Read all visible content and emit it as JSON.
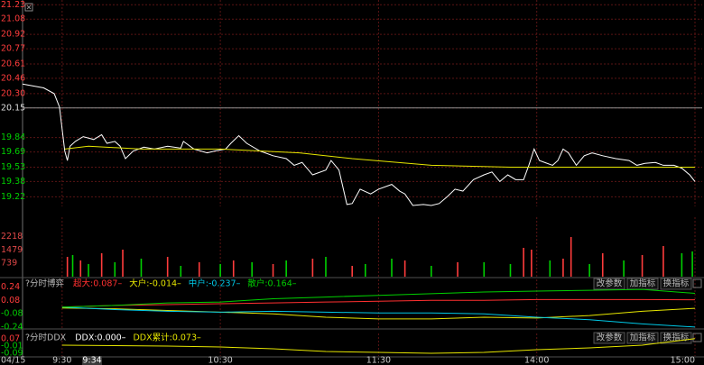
{
  "chart_data": [
    {
      "type": "line",
      "date_label": "04/15",
      "cursor_label": "9:34",
      "xlim": [
        -15,
        240
      ],
      "xticks": [
        {
          "value": 0,
          "label": "9:30"
        },
        {
          "value": 60,
          "label": "10:30"
        },
        {
          "value": 120,
          "label": "11:30"
        },
        {
          "value": 180,
          "label": "14:00"
        },
        {
          "value": 240,
          "label": "15:00"
        }
      ],
      "ylim": [
        19.12,
        21.28
      ],
      "yticks": [
        21.23,
        21.08,
        20.92,
        20.77,
        20.61,
        20.46,
        {
          "value": 20.3,
          "label": "20.30"
        },
        20.15,
        19.84,
        19.69,
        19.53,
        19.38,
        19.22
      ],
      "reference": 20.15,
      "up_color": "#ff3c3c",
      "down_color": "#00d000",
      "grid": true,
      "series": [
        {
          "color": "#ffffff",
          "x": [
            -15,
            -11,
            -7,
            -3,
            -1,
            1,
            2,
            3,
            5,
            8,
            12,
            15,
            17,
            20,
            22,
            24,
            27,
            31,
            35,
            40,
            45,
            46,
            50,
            55,
            58,
            62,
            64,
            67,
            70,
            75,
            80,
            85,
            88,
            91,
            95,
            100,
            102,
            105,
            108,
            110,
            113,
            117,
            120,
            125,
            128,
            130,
            133,
            137,
            140,
            143,
            146,
            149,
            152,
            156,
            160,
            163,
            166,
            169,
            172,
            175,
            177,
            179,
            181,
            183,
            186,
            188,
            190,
            192,
            195,
            198,
            201,
            205,
            210,
            215,
            218,
            221,
            225,
            228,
            232,
            235,
            238,
            240
          ],
          "values": [
            20.4,
            20.38,
            20.36,
            20.3,
            20.16,
            19.7,
            19.6,
            19.75,
            19.8,
            19.85,
            19.82,
            19.87,
            19.78,
            19.8,
            19.75,
            19.62,
            19.7,
            19.74,
            19.72,
            19.75,
            19.73,
            19.8,
            19.72,
            19.68,
            19.7,
            19.72,
            19.78,
            19.86,
            19.78,
            19.7,
            19.65,
            19.62,
            19.55,
            19.58,
            19.45,
            19.5,
            19.6,
            19.5,
            19.14,
            19.15,
            19.3,
            19.25,
            19.3,
            19.35,
            19.28,
            19.25,
            19.13,
            19.14,
            19.13,
            19.15,
            19.22,
            19.3,
            19.28,
            19.4,
            19.45,
            19.48,
            19.38,
            19.45,
            19.4,
            19.4,
            19.55,
            19.72,
            19.6,
            19.58,
            19.55,
            19.6,
            19.72,
            19.68,
            19.55,
            19.65,
            19.68,
            19.65,
            19.62,
            19.6,
            19.55,
            19.57,
            19.58,
            19.55,
            19.55,
            19.52,
            19.45,
            19.38
          ]
        },
        {
          "color": "#e6e600",
          "x": [
            1,
            10,
            30,
            60,
            90,
            110,
            140,
            170,
            200,
            240
          ],
          "values": [
            19.72,
            19.75,
            19.72,
            19.72,
            19.68,
            19.62,
            19.55,
            19.53,
            19.53,
            19.53
          ]
        }
      ]
    },
    {
      "type": "bar",
      "xlim": [
        -15,
        240
      ],
      "ylim": [
        0,
        3300
      ],
      "yticks": [
        2218,
        1479,
        739
      ],
      "tick_color": "#e04848",
      "series": [
        {
          "color": "#ff3c3c",
          "x": [
            2,
            7,
            15,
            23,
            40,
            52,
            65,
            80,
            95,
            110,
            130,
            150,
            175,
            178,
            190,
            193,
            205,
            220,
            228
          ],
          "values": [
            1100,
            900,
            1300,
            1500,
            1100,
            800,
            900,
            700,
            1000,
            600,
            900,
            800,
            1600,
            1500,
            1000,
            2200,
            1300,
            1200,
            1700
          ]
        },
        {
          "color": "#00d000",
          "x": [
            4,
            10,
            20,
            30,
            45,
            60,
            72,
            85,
            100,
            115,
            125,
            140,
            160,
            170,
            185,
            200,
            213,
            235,
            239
          ],
          "values": [
            1200,
            700,
            800,
            1000,
            600,
            700,
            800,
            900,
            1100,
            700,
            1000,
            600,
            800,
            700,
            900,
            700,
            900,
            1300,
            1400
          ]
        }
      ]
    },
    {
      "type": "line",
      "title": "?分时博弈",
      "buttons": [
        "改参数",
        "加指标",
        "换指标"
      ],
      "xlim": [
        -15,
        240
      ],
      "ylim": [
        -0.26,
        0.33
      ],
      "yticks": [
        0.24,
        0.08,
        -0.08,
        -0.24
      ],
      "reference": 0,
      "up_color": "#ff3c3c",
      "down_color": "#00d000",
      "x": [
        0,
        20,
        40,
        60,
        80,
        100,
        120,
        140,
        160,
        180,
        200,
        220,
        240
      ],
      "series": [
        {
          "name": "超大:0.087–",
          "color": "#ff3030",
          "values": [
            0,
            0.02,
            0.03,
            0.04,
            0.05,
            0.06,
            0.07,
            0.08,
            0.08,
            0.09,
            0.09,
            0.09,
            0.087
          ]
        },
        {
          "name": "大户:-0.014–",
          "color": "#e6e600",
          "values": [
            -0.01,
            -0.02,
            -0.04,
            -0.06,
            -0.08,
            -0.12,
            -0.14,
            -0.14,
            -0.12,
            -0.13,
            -0.1,
            -0.05,
            -0.014
          ]
        },
        {
          "name": "中户:-0.237–",
          "color": "#00c8e6",
          "values": [
            0,
            -0.03,
            -0.05,
            -0.06,
            -0.05,
            -0.06,
            -0.07,
            -0.07,
            -0.08,
            -0.12,
            -0.15,
            -0.2,
            -0.237
          ]
        },
        {
          "name": "散户:0.164–",
          "color": "#00d000",
          "values": [
            0,
            0.02,
            0.05,
            0.06,
            0.1,
            0.12,
            0.14,
            0.16,
            0.18,
            0.19,
            0.2,
            0.21,
            0.164
          ]
        }
      ]
    },
    {
      "type": "line",
      "title": "?分时DDX",
      "buttons": [
        "改参数",
        "加指标",
        "换指标"
      ],
      "xlim": [
        -15,
        240
      ],
      "ylim": [
        -0.12,
        0.13
      ],
      "yticks": [
        0.07,
        -0.01,
        -0.09
      ],
      "reference": 0,
      "up_color": "#ff3c3c",
      "down_color": "#00d000",
      "x": [
        0,
        20,
        40,
        60,
        80,
        100,
        120,
        140,
        160,
        180,
        200,
        220,
        240
      ],
      "labels": [
        {
          "text": "DDX:0.000–",
          "color": "#ffffff"
        }
      ],
      "series": [
        {
          "name": "DDX累计:0.073–",
          "color": "#e6e600",
          "values": [
            0,
            -0.005,
            -0.01,
            -0.02,
            -0.04,
            -0.07,
            -0.08,
            -0.09,
            -0.08,
            -0.05,
            -0.03,
            0,
            0.073
          ]
        }
      ]
    }
  ]
}
